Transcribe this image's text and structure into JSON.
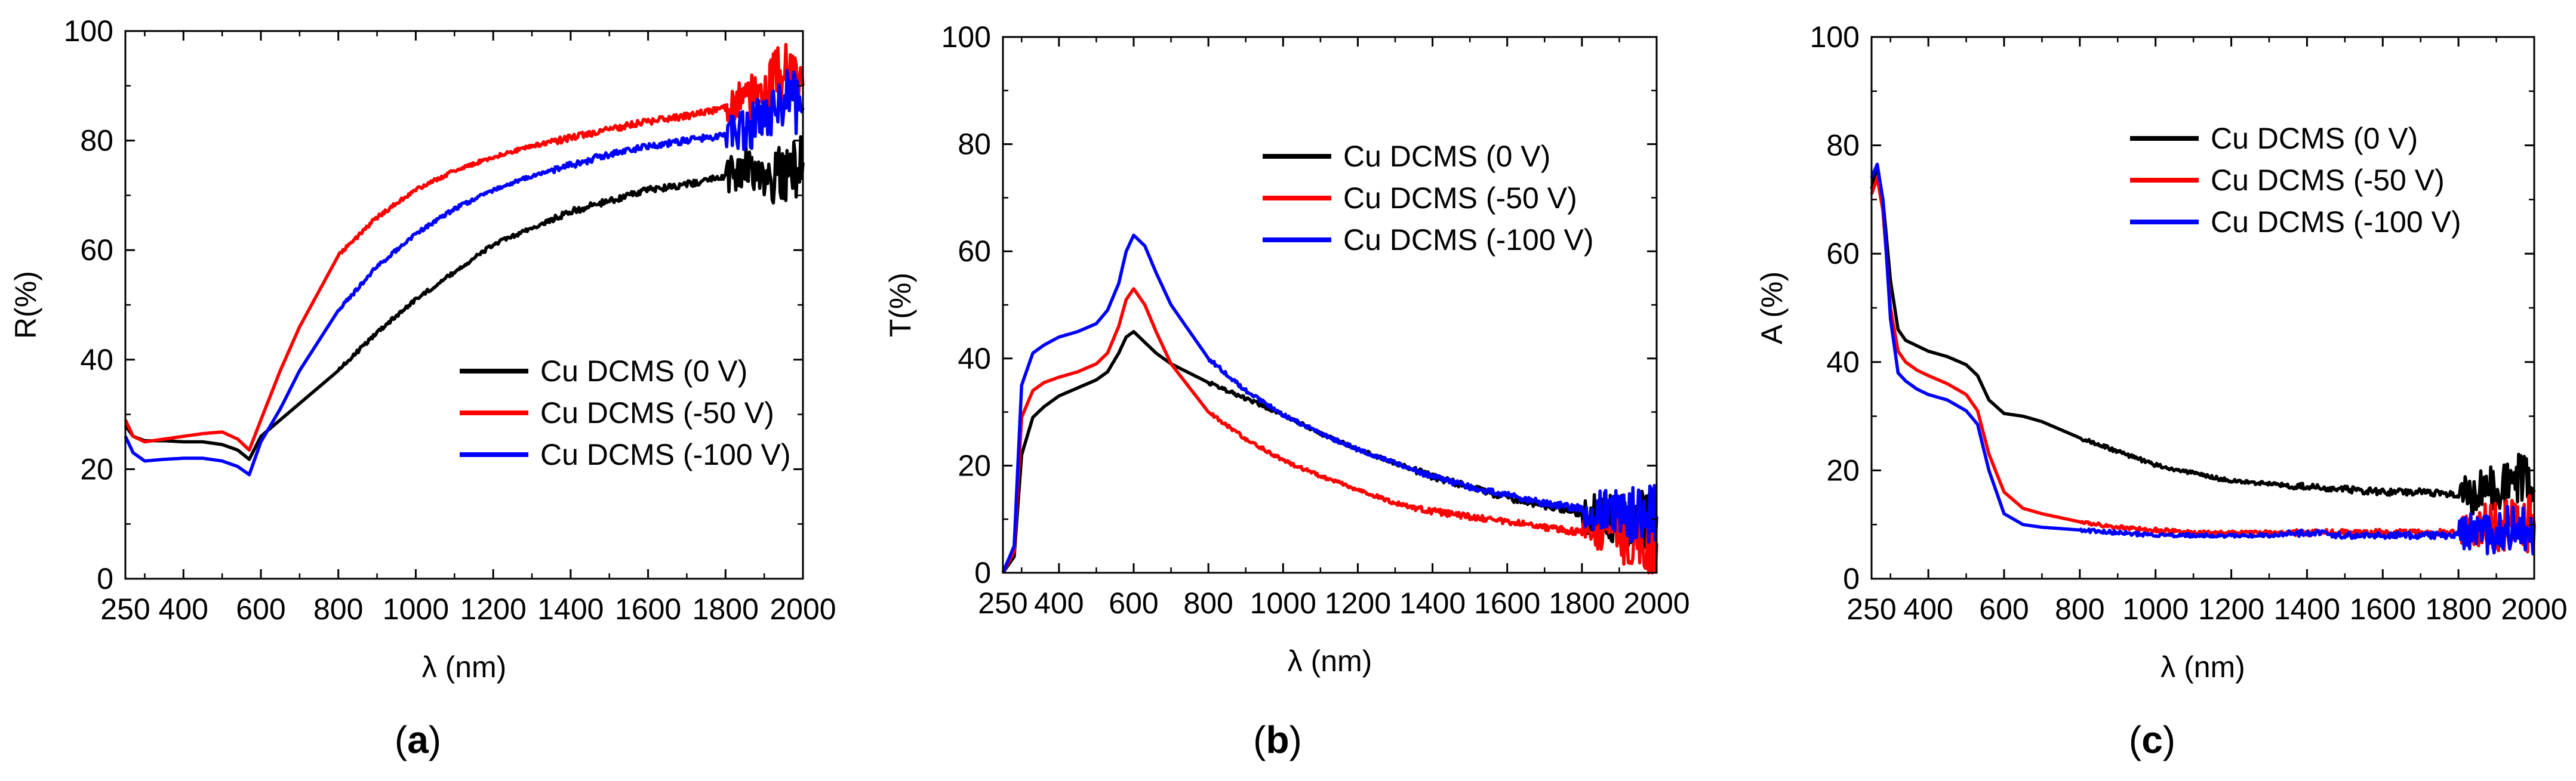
{
  "chart_data": [
    {
      "type": "line",
      "caption": "a",
      "xlabel": "λ (nm)",
      "ylabel": "R(%)",
      "xlim": [
        250,
        2000
      ],
      "ylim": [
        0,
        100
      ],
      "xticks": [
        250,
        400,
        600,
        800,
        1000,
        1200,
        1400,
        1600,
        1800,
        2000
      ],
      "yticks": [
        0,
        20,
        40,
        60,
        80,
        100
      ],
      "legend_position": "center-right",
      "series": [
        {
          "name": "Cu DCMS (0 V)",
          "color": "#000000",
          "x": [
            250,
            270,
            300,
            350,
            400,
            450,
            500,
            540,
            570,
            600,
            650,
            700,
            800,
            900,
            1000,
            1100,
            1200,
            1300,
            1400,
            1500,
            1600,
            1700,
            1800,
            1850,
            1900,
            1950,
            2000
          ],
          "y": [
            28,
            26,
            25.2,
            25.2,
            25,
            25,
            24.5,
            23.5,
            21.8,
            26,
            29,
            32,
            38,
            45,
            51,
            56,
            61,
            64,
            67,
            69,
            71,
            72,
            73.5,
            75,
            73,
            74,
            76
          ]
        },
        {
          "name": "Cu DCMS (-50 V)",
          "color": "#ff0000",
          "x": [
            250,
            270,
            300,
            350,
            400,
            450,
            500,
            540,
            570,
            600,
            650,
            700,
            800,
            900,
            1000,
            1100,
            1200,
            1300,
            1400,
            1500,
            1600,
            1700,
            1800,
            1850,
            1900,
            1950,
            2000
          ],
          "y": [
            29,
            26,
            25,
            25.5,
            26,
            26.5,
            26.8,
            25.5,
            23.5,
            29,
            38,
            46,
            59,
            66,
            71,
            74.5,
            77,
            79,
            80.5,
            82,
            83.5,
            84.5,
            86,
            87,
            89,
            93,
            90
          ]
        },
        {
          "name": "Cu DCMS (-100 V)",
          "color": "#0000ff",
          "x": [
            250,
            270,
            300,
            350,
            400,
            450,
            500,
            540,
            570,
            600,
            650,
            700,
            800,
            900,
            1000,
            1100,
            1200,
            1300,
            1400,
            1500,
            1600,
            1700,
            1800,
            1850,
            1900,
            1950,
            2000
          ],
          "y": [
            26,
            23,
            21.5,
            21.8,
            22,
            22,
            21.5,
            20.5,
            19,
            25,
            31,
            38,
            49,
            57,
            63,
            67.5,
            71,
            73.5,
            75.5,
            77.5,
            79,
            80,
            81,
            82,
            84,
            88,
            86
          ]
        }
      ]
    },
    {
      "type": "line",
      "caption": "b",
      "xlabel": "λ (nm)",
      "ylabel": "T(%)",
      "xlim": [
        250,
        2000
      ],
      "ylim": [
        0,
        100
      ],
      "xticks": [
        250,
        400,
        600,
        800,
        1000,
        1200,
        1400,
        1600,
        1800,
        2000
      ],
      "yticks": [
        0,
        20,
        40,
        60,
        80,
        100
      ],
      "legend_position": "top-right",
      "series": [
        {
          "name": "Cu DCMS (0 V)",
          "color": "#000000",
          "x": [
            250,
            280,
            300,
            330,
            360,
            400,
            450,
            500,
            530,
            560,
            580,
            600,
            630,
            660,
            700,
            800,
            900,
            1000,
            1100,
            1200,
            1300,
            1400,
            1500,
            1600,
            1700,
            1800,
            1900,
            2000
          ],
          "y": [
            0,
            3,
            22,
            29,
            31,
            33,
            34.5,
            36,
            37.5,
            41,
            44,
            45,
            43,
            41,
            39,
            35.5,
            32.5,
            29.5,
            26,
            23,
            20.5,
            18,
            16,
            14,
            12.5,
            11,
            10,
            9.5
          ]
        },
        {
          "name": "Cu DCMS (-50 V)",
          "color": "#ff0000",
          "x": [
            250,
            280,
            300,
            330,
            360,
            400,
            450,
            500,
            530,
            560,
            580,
            600,
            630,
            660,
            700,
            800,
            900,
            1000,
            1100,
            1200,
            1300,
            1400,
            1500,
            1600,
            1700,
            1800,
            1900,
            2000
          ],
          "y": [
            0,
            4,
            29,
            34,
            35.5,
            36.5,
            37.5,
            39,
            41,
            46,
            51,
            53,
            50,
            45,
            39,
            30,
            25,
            21,
            18,
            15.5,
            13,
            11.5,
            10.5,
            9.5,
            8.5,
            7.5,
            6.5,
            5.5
          ]
        },
        {
          "name": "Cu DCMS (-100 V)",
          "color": "#0000ff",
          "x": [
            250,
            280,
            300,
            330,
            360,
            400,
            450,
            500,
            530,
            560,
            580,
            600,
            630,
            660,
            700,
            800,
            900,
            1000,
            1100,
            1200,
            1300,
            1400,
            1500,
            1600,
            1700,
            1800,
            1900,
            2000
          ],
          "y": [
            0,
            5,
            35,
            41,
            42.5,
            44,
            45,
            46.5,
            49,
            54,
            60,
            63,
            61,
            56,
            50,
            40,
            34,
            29.5,
            26,
            23,
            20.5,
            18,
            16,
            14.5,
            13,
            12,
            11,
            10.5
          ]
        }
      ]
    },
    {
      "type": "line",
      "caption": "c",
      "xlabel": "λ (nm)",
      "ylabel": "A (%)",
      "xlim": [
        250,
        2000
      ],
      "ylim": [
        0,
        100
      ],
      "xticks": [
        250,
        400,
        600,
        800,
        1000,
        1200,
        1400,
        1600,
        1800,
        2000
      ],
      "yticks": [
        0,
        20,
        40,
        60,
        80,
        100
      ],
      "legend_position": "top-right",
      "series": [
        {
          "name": "Cu DCMS (0 V)",
          "color": "#000000",
          "x": [
            250,
            265,
            280,
            300,
            320,
            340,
            370,
            400,
            450,
            500,
            530,
            560,
            600,
            650,
            700,
            800,
            900,
            1000,
            1100,
            1200,
            1300,
            1400,
            1500,
            1600,
            1700,
            1800,
            1850,
            1900,
            1950,
            2000
          ],
          "y": [
            72,
            76,
            70,
            55,
            46,
            44,
            43,
            42,
            41,
            39.5,
            37.5,
            33,
            30.5,
            30,
            29,
            26,
            23.5,
            21,
            19.5,
            18,
            17.5,
            17,
            16.5,
            16,
            16,
            15.5,
            16,
            17,
            18,
            16
          ]
        },
        {
          "name": "Cu DCMS (-50 V)",
          "color": "#ff0000",
          "x": [
            250,
            265,
            280,
            300,
            320,
            340,
            370,
            400,
            450,
            500,
            530,
            560,
            600,
            650,
            700,
            800,
            900,
            1000,
            1100,
            1200,
            1300,
            1400,
            1500,
            1600,
            1700,
            1800,
            1850,
            1900,
            1950,
            2000
          ],
          "y": [
            71,
            74,
            68,
            50,
            42,
            40,
            38.5,
            37.5,
            36,
            34,
            31,
            23,
            16,
            13,
            12,
            10.5,
            9.5,
            9,
            8.5,
            8.5,
            8.5,
            8.5,
            8.5,
            8.5,
            8.5,
            8.5,
            9,
            10,
            10,
            10
          ]
        },
        {
          "name": "Cu DCMS (-100 V)",
          "color": "#0000ff",
          "x": [
            250,
            265,
            280,
            300,
            320,
            340,
            370,
            400,
            450,
            500,
            530,
            560,
            600,
            650,
            700,
            800,
            900,
            1000,
            1100,
            1200,
            1300,
            1400,
            1500,
            1600,
            1700,
            1800,
            1850,
            1900,
            1950,
            2000
          ],
          "y": [
            74,
            76.5,
            70,
            48,
            38,
            36.5,
            35,
            34,
            33,
            31,
            28.5,
            20,
            12,
            10,
            9.5,
            9,
            8.5,
            8,
            8,
            8,
            8,
            8.5,
            8,
            8,
            8,
            8,
            8.5,
            9,
            9,
            10
          ]
        }
      ]
    }
  ]
}
